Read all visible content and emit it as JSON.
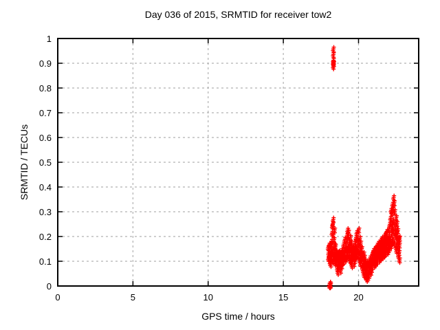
{
  "title": "Day 036 of 2015, SRMTID for receiver tow2",
  "chart_data": {
    "type": "scatter",
    "title": "Day 036 of 2015, SRMTID for receiver tow2",
    "xlabel": "GPS time / hours",
    "ylabel": "SRMTID / TECUs",
    "xlim": [
      0,
      24
    ],
    "ylim": [
      0,
      1
    ],
    "x_ticks": [
      0,
      5,
      10,
      15,
      20
    ],
    "x_tick_labels": [
      "0",
      "5",
      "10",
      "15",
      "20"
    ],
    "y_ticks": [
      0,
      0.1,
      0.2,
      0.3,
      0.4,
      0.5,
      0.6,
      0.7,
      0.8,
      0.9,
      1
    ],
    "y_tick_labels": [
      "0",
      "0.1",
      "0.2",
      "0.3",
      "0.4",
      "0.5",
      "0.6",
      "0.7",
      "0.8",
      "0.9",
      "1"
    ],
    "grid": true,
    "grid_color": "#b0b0b0",
    "legend": "none",
    "marker": "plus",
    "marker_color": "#ff0000",
    "series": [
      {
        "name": "SRMTID",
        "columns": [
          [
            18.0,
            [
              0.112,
              0.134,
              0.155
            ]
          ],
          [
            18.08,
            [
              0.096,
              0.121,
              0.149,
              0.166
            ]
          ],
          [
            18.16,
            [
              0.089,
              0.128,
              0.137,
              0.172
            ]
          ],
          [
            18.24,
            [
              0.117,
              0.139,
              0.181,
              0.214,
              0.243
            ]
          ],
          [
            18.32,
            [
              0.104,
              0.131,
              0.15,
              0.208,
              0.252,
              0.269
            ]
          ],
          [
            18.4,
            [
              0.113,
              0.129,
              0.164,
              0.188,
              0.227
            ]
          ],
          [
            18.48,
            [
              0.094,
              0.119,
              0.136,
              0.159
            ]
          ],
          [
            18.56,
            [
              0.071,
              0.099,
              0.124,
              0.137
            ]
          ],
          [
            18.64,
            [
              0.057,
              0.091,
              0.11,
              0.133
            ]
          ],
          [
            18.72,
            [
              0.079,
              0.098,
              0.121,
              0.136
            ]
          ],
          [
            18.8,
            [
              0.064,
              0.093,
              0.111,
              0.129
            ]
          ],
          [
            18.88,
            [
              0.082,
              0.107,
              0.12,
              0.144
            ]
          ],
          [
            18.96,
            [
              0.097,
              0.112,
              0.135,
              0.151
            ]
          ],
          [
            19.04,
            [
              0.101,
              0.126,
              0.144,
              0.17
            ]
          ],
          [
            19.12,
            [
              0.109,
              0.137,
              0.156,
              0.189
            ]
          ],
          [
            19.2,
            [
              0.117,
              0.143,
              0.175,
              0.203
            ]
          ],
          [
            19.28,
            [
              0.126,
              0.153,
              0.188,
              0.226
            ]
          ],
          [
            19.36,
            [
              0.116,
              0.15,
              0.176,
              0.218
            ]
          ],
          [
            19.44,
            [
              0.107,
              0.139,
              0.163,
              0.197
            ]
          ],
          [
            19.52,
            [
              0.097,
              0.127,
              0.148,
              0.174
            ]
          ],
          [
            19.6,
            [
              0.084,
              0.112,
              0.13,
              0.149
            ]
          ],
          [
            19.68,
            [
              0.091,
              0.117,
              0.136,
              0.16
            ]
          ],
          [
            19.76,
            [
              0.104,
              0.132,
              0.153,
              0.18
            ]
          ],
          [
            19.84,
            [
              0.119,
              0.143,
              0.174,
              0.196
            ]
          ],
          [
            19.92,
            [
              0.127,
              0.16,
              0.186,
              0.217
            ]
          ],
          [
            20.0,
            [
              0.121,
              0.154,
              0.18,
              0.227
            ]
          ],
          [
            20.08,
            [
              0.107,
              0.136,
              0.167,
              0.193
            ]
          ],
          [
            20.16,
            [
              0.091,
              0.122,
              0.146,
              0.174
            ]
          ],
          [
            20.24,
            [
              0.074,
              0.104,
              0.126,
              0.152
            ]
          ],
          [
            20.32,
            [
              0.061,
              0.083,
              0.112,
              0.13
            ]
          ],
          [
            20.4,
            [
              0.047,
              0.074,
              0.093,
              0.117
            ]
          ],
          [
            20.48,
            [
              0.037,
              0.061,
              0.08,
              0.102
            ]
          ],
          [
            20.56,
            [
              0.029,
              0.053,
              0.071,
              0.091
            ]
          ],
          [
            20.64,
            [
              0.035,
              0.054,
              0.077,
              0.09
            ]
          ],
          [
            20.72,
            [
              0.043,
              0.064,
              0.087,
              0.101
            ]
          ],
          [
            20.8,
            [
              0.056,
              0.077,
              0.099,
              0.114
            ]
          ],
          [
            20.88,
            [
              0.067,
              0.092,
              0.108,
              0.127
            ]
          ],
          [
            20.96,
            [
              0.079,
              0.099,
              0.122,
              0.135
            ]
          ],
          [
            21.04,
            [
              0.086,
              0.107,
              0.129,
              0.144
            ]
          ],
          [
            21.12,
            [
              0.091,
              0.116,
              0.134,
              0.153
            ]
          ],
          [
            21.2,
            [
              0.099,
              0.119,
              0.143,
              0.157
            ]
          ],
          [
            21.28,
            [
              0.101,
              0.126,
              0.147,
              0.166
            ]
          ],
          [
            21.36,
            [
              0.107,
              0.131,
              0.151,
              0.173
            ]
          ],
          [
            21.44,
            [
              0.113,
              0.134,
              0.159,
              0.177
            ]
          ],
          [
            21.52,
            [
              0.117,
              0.141,
              0.161,
              0.186
            ]
          ],
          [
            21.6,
            [
              0.121,
              0.146,
              0.169,
              0.191
            ]
          ],
          [
            21.68,
            [
              0.127,
              0.149,
              0.173,
              0.199
            ]
          ],
          [
            21.76,
            [
              0.131,
              0.156,
              0.177,
              0.206
            ]
          ],
          [
            21.84,
            [
              0.134,
              0.159,
              0.183,
              0.211
            ]
          ],
          [
            21.92,
            [
              0.139,
              0.163,
              0.187,
              0.221
            ]
          ],
          [
            22.0,
            [
              0.147,
              0.171,
              0.196,
              0.231
            ]
          ],
          [
            22.08,
            [
              0.154,
              0.181,
              0.209,
              0.249
            ]
          ],
          [
            22.16,
            [
              0.164,
              0.196,
              0.231,
              0.274,
              0.306
            ]
          ],
          [
            22.24,
            [
              0.176,
              0.209,
              0.251,
              0.297,
              0.331
            ]
          ],
          [
            22.32,
            [
              0.183,
              0.221,
              0.264,
              0.316,
              0.358
            ]
          ],
          [
            22.4,
            [
              0.174,
              0.216,
              0.257,
              0.301,
              0.337
            ]
          ],
          [
            22.48,
            [
              0.161,
              0.201,
              0.239,
              0.277
            ]
          ],
          [
            22.56,
            [
              0.144,
              0.181,
              0.214,
              0.253
            ]
          ],
          [
            22.64,
            [
              0.124,
              0.159,
              0.191,
              0.224
            ]
          ],
          [
            22.72,
            [
              0.106,
              0.136,
              0.166,
              0.194
            ]
          ]
        ],
        "points": [
          [
            18.06,
            0.004
          ],
          [
            18.1,
            0.003
          ],
          [
            18.14,
            0.005
          ],
          [
            18.11,
            0.01
          ],
          [
            18.33,
            0.958
          ],
          [
            18.33,
            0.936
          ],
          [
            18.33,
            0.912
          ],
          [
            18.32,
            0.903
          ],
          [
            18.35,
            0.899
          ],
          [
            18.33,
            0.888
          ]
        ]
      }
    ]
  },
  "layout_text": {
    "background": "#ffffff",
    "border_color": "#000000"
  }
}
